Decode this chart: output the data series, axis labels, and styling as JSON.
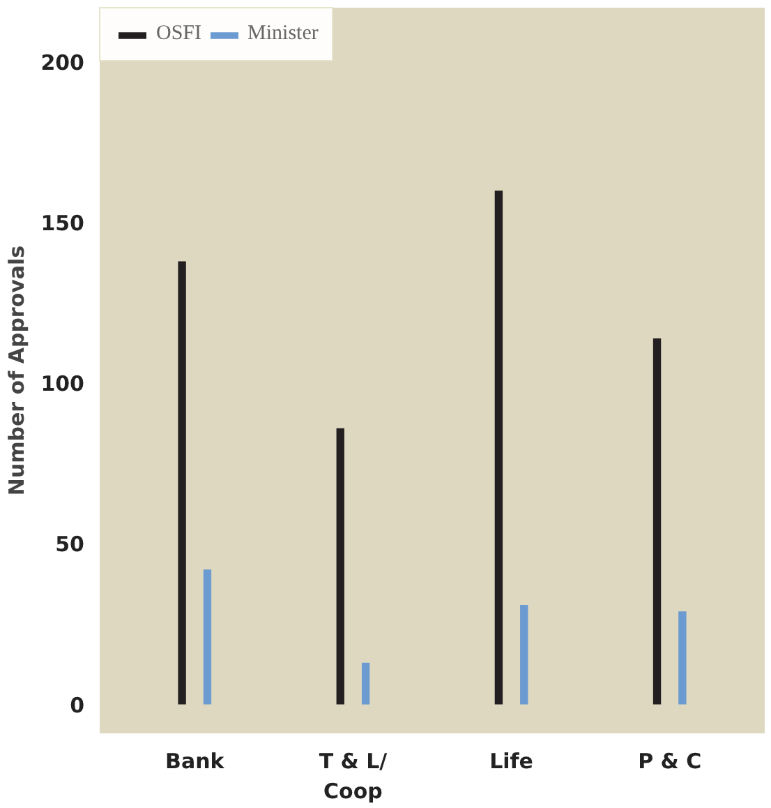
{
  "chart_data": {
    "type": "bar",
    "ylabel": "Number of Approvals",
    "categories": [
      "Bank",
      "T & L/ Coop",
      "Life",
      "P & C"
    ],
    "series": [
      {
        "name": "OSFI",
        "color": "#231f20",
        "values": [
          138,
          86,
          160,
          114
        ]
      },
      {
        "name": "Minister",
        "color": "#6b9bd1",
        "values": [
          42,
          13,
          31,
          29
        ]
      }
    ],
    "ylim": [
      -9,
      217
    ],
    "yticks": [
      0,
      50,
      100,
      150,
      200
    ],
    "grid": false,
    "legend": "top left"
  }
}
